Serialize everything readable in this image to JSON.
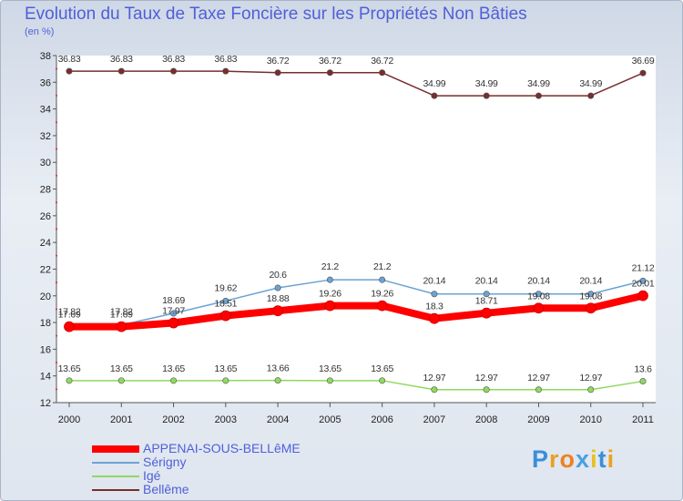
{
  "chart_data": {
    "type": "line",
    "title": "Evolution du Taux de Taxe Foncière sur les Propriétés Non Bâties",
    "ylabel": "(en %)",
    "xlabel": "",
    "categories": [
      "2000",
      "2001",
      "2002",
      "2003",
      "2004",
      "2005",
      "2006",
      "2007",
      "2008",
      "2009",
      "2010",
      "2011"
    ],
    "ylim": [
      12,
      38
    ],
    "yticks": [
      12,
      14,
      16,
      18,
      20,
      22,
      24,
      26,
      28,
      30,
      32,
      34,
      36,
      38
    ],
    "series": [
      {
        "name": "Bellême",
        "color": "#7a2d2d",
        "values": [
          36.83,
          36.83,
          36.83,
          36.83,
          36.72,
          36.72,
          36.72,
          34.99,
          34.99,
          34.99,
          34.99,
          36.69
        ],
        "labels": [
          "36.83",
          "36.83",
          "36.83",
          "36.83",
          "36.72",
          "36.72",
          "36.72",
          "34.99",
          "34.99",
          "34.99",
          "34.99",
          "36.69"
        ]
      },
      {
        "name": "Sérigny",
        "color": "#6aa3d4",
        "values": [
          17.82,
          17.82,
          18.69,
          19.62,
          20.6,
          21.2,
          21.2,
          20.14,
          20.14,
          20.14,
          20.14,
          21.12
        ],
        "labels": [
          "17.82",
          "17.82",
          "18.69",
          "19.62",
          "20.6",
          "21.2",
          "21.2",
          "20.14",
          "20.14",
          "20.14",
          "20.14",
          "21.12"
        ]
      },
      {
        "name": "APPENAI-SOUS-BELLêME",
        "color": "#ff0000",
        "values": [
          17.69,
          17.69,
          17.97,
          18.51,
          18.88,
          19.26,
          19.26,
          18.3,
          18.71,
          19.08,
          19.08,
          20.01
        ],
        "labels": [
          "17.69",
          "17.69",
          "17.97",
          "18.51",
          "18.88",
          "19.26",
          "19.26",
          "18.3",
          "18.71",
          "19.08",
          "19.08",
          "20.01"
        ]
      },
      {
        "name": "Igé",
        "color": "#90d860",
        "values": [
          13.65,
          13.65,
          13.65,
          13.65,
          13.66,
          13.65,
          13.65,
          12.97,
          12.97,
          12.97,
          12.97,
          13.6
        ],
        "labels": [
          "13.65",
          "13.65",
          "13.65",
          "13.65",
          "13.66",
          "13.65",
          "13.65",
          "12.97",
          "12.97",
          "12.97",
          "12.97",
          "13.6"
        ]
      }
    ],
    "legend": [
      {
        "name": "APPENAI-SOUS-BELLêME",
        "color": "#ff0000",
        "thick": true
      },
      {
        "name": "Sérigny",
        "color": "#6aa3d4",
        "thick": false
      },
      {
        "name": "Igé",
        "color": "#90d860",
        "thick": false
      },
      {
        "name": "Bellême",
        "color": "#7a2d2d",
        "thick": false
      }
    ]
  },
  "logo": {
    "text": "Proxiti",
    "colors": [
      "#3a8fd8",
      "#e8a020",
      "#f08020",
      "#4aa0e0",
      "#e8c020",
      "#3a8fd8",
      "#f0a020"
    ]
  }
}
